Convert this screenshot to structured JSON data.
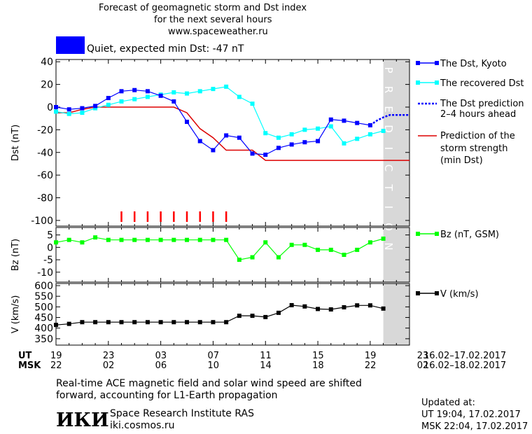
{
  "header": {
    "title_line1": "Forecast of geomagnetic storm and Dst index",
    "title_line2": "for the next several hours",
    "url": "www.spaceweather.ru"
  },
  "status": {
    "label": "Quiet, expected min Dst: -47 nT",
    "color": "#0000ff"
  },
  "legend": {
    "dst_kyoto": "The Dst, Kyoto",
    "dst_recovered": "The recovered Dst",
    "dst_prediction_1": "The Dst prediction",
    "dst_prediction_2": "2–4 hours ahead",
    "strength_1": "Prediction of the",
    "strength_2": "storm strength",
    "strength_3": "(min Dst)",
    "bz": "Bz (nT, GSM)",
    "v": "V (km/s)"
  },
  "prediction_label": "PREDICTION",
  "time_axis": {
    "ut_label": "UT",
    "msk_label": "MSK",
    "ut_ticks": [
      "19",
      "23",
      "03",
      "07",
      "11",
      "15",
      "19",
      "23"
    ],
    "msk_ticks": [
      "22",
      "02",
      "06",
      "10",
      "14",
      "18",
      "22",
      "02"
    ],
    "ut_range": "16.02–17.02.2017",
    "msk_range": "16.02–18.02.2017"
  },
  "footer": {
    "note_line1": "Real-time ACE magnetic field and solar wind speed are shifted",
    "note_line2": "forward, accounting for L1-Earth propagation",
    "logo_text": "ИКИ",
    "institute": "Space Research Institute RAS",
    "site": "iki.cosmos.ru",
    "updated_label": "Updated at:",
    "updated_ut": "UT   19:04, 17.02.2017",
    "updated_msk": "MSK 22:04, 17.02.2017"
  },
  "colors": {
    "kyoto": "#0000ff",
    "recovered": "#00ffff",
    "prediction": "#0000ff",
    "strength": "#dd0000",
    "bz": "#00ff00",
    "v": "#000000",
    "marker": "#ff0000",
    "shade": "#d8d8d8"
  },
  "chart_data": [
    {
      "type": "line",
      "ylabel": "Dst (nT)",
      "ylim": [
        -105,
        42
      ],
      "yticks": [
        40,
        20,
        0,
        -20,
        -40,
        -60,
        -80,
        -100
      ],
      "xlim": [
        19,
        46
      ],
      "series": [
        {
          "name": "The Dst, Kyoto",
          "x": [
            19,
            20,
            21,
            22,
            23,
            24,
            25,
            26,
            27,
            28,
            29,
            30,
            31,
            32,
            33,
            34,
            35,
            36,
            37,
            38,
            39,
            40,
            41,
            42,
            43
          ],
          "values": [
            0,
            -2,
            -1,
            1,
            8,
            14,
            15,
            14,
            10,
            5,
            -13,
            -30,
            -38,
            -25,
            -27,
            -41,
            -42,
            -36,
            -33,
            -31,
            -30,
            -11,
            -12,
            -14,
            -16
          ]
        },
        {
          "name": "The recovered Dst",
          "x": [
            19,
            20,
            21,
            22,
            23,
            24,
            25,
            26,
            27,
            28,
            29,
            30,
            31,
            32,
            33,
            34,
            35,
            36,
            37,
            38,
            39,
            40,
            41,
            42,
            43,
            44
          ],
          "values": [
            -4,
            -6,
            -5,
            -1,
            2,
            5,
            7,
            9,
            11,
            13,
            12,
            14,
            16,
            18,
            9,
            3,
            -23,
            -27,
            -24,
            -20,
            -19,
            -17,
            -32,
            -28,
            -24,
            -21
          ]
        },
        {
          "name": "The Dst prediction 2–4 hours ahead",
          "x": [
            43,
            43.5,
            44,
            44.5,
            45,
            46
          ],
          "values": [
            -16,
            -12,
            -9,
            -7,
            -7,
            -7
          ]
        },
        {
          "name": "Prediction of the storm strength (min Dst)",
          "x": [
            19,
            20,
            21,
            22,
            28,
            29,
            30,
            31,
            32,
            33,
            34,
            35,
            46
          ],
          "values": [
            -5,
            -5,
            -2,
            0,
            0,
            -5,
            -19,
            -27,
            -38,
            -38,
            -38,
            -47,
            -47
          ]
        }
      ],
      "markers_x": [
        24,
        25,
        26,
        27,
        28,
        29,
        30,
        31,
        32
      ]
    },
    {
      "type": "line",
      "ylabel": "Bz (nT)",
      "ylim": [
        -14,
        8
      ],
      "yticks": [
        5,
        0,
        -5,
        -10
      ],
      "xlim": [
        19,
        46
      ],
      "series": [
        {
          "name": "Bz (nT, GSM)",
          "x": [
            19,
            20,
            21,
            22,
            23,
            24,
            25,
            26,
            27,
            28,
            29,
            30,
            31,
            32,
            33,
            34,
            35,
            36,
            37,
            38,
            39,
            40,
            41,
            42,
            43,
            44
          ],
          "values": [
            2,
            3,
            2,
            4,
            3,
            3,
            3,
            3,
            3,
            3,
            3,
            3,
            3,
            3,
            -5,
            -4,
            2,
            -4,
            1,
            1,
            -1,
            -1,
            -3,
            -1,
            2,
            3.5
          ]
        }
      ]
    },
    {
      "type": "line",
      "ylabel": "V (km/s)",
      "ylim": [
        320,
        610
      ],
      "yticks": [
        600,
        550,
        500,
        450,
        400,
        350
      ],
      "xlim": [
        19,
        46
      ],
      "series": [
        {
          "name": "V (km/s)",
          "x": [
            19,
            20,
            21,
            22,
            23,
            24,
            25,
            26,
            27,
            28,
            29,
            30,
            31,
            32,
            33,
            34,
            35,
            36,
            37,
            38,
            39,
            40,
            41,
            42,
            43,
            44
          ],
          "values": [
            415,
            420,
            428,
            428,
            428,
            428,
            428,
            428,
            428,
            428,
            428,
            428,
            428,
            428,
            458,
            458,
            452,
            472,
            508,
            502,
            490,
            488,
            498,
            507,
            507,
            492
          ]
        }
      ]
    }
  ]
}
